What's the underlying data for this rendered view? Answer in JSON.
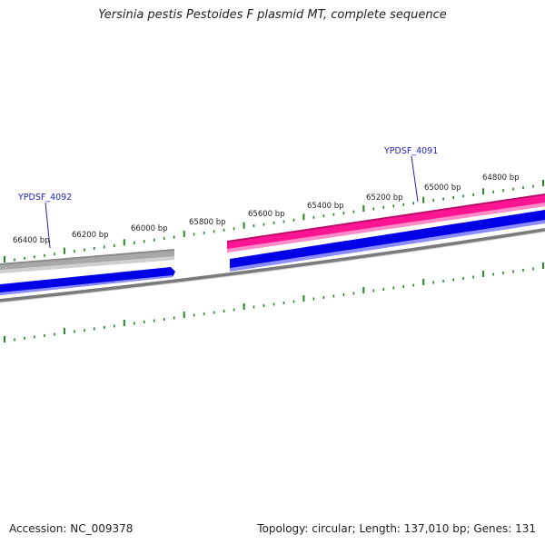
{
  "title": "Yersinia pestis Pestoides F plasmid MT, complete sequence",
  "scale_labels": [
    "66400 bp",
    "66200 bp",
    "66000 bp",
    "65800 bp",
    "65600 bp",
    "65400 bp",
    "65200 bp",
    "65000 bp",
    "64800 bp"
  ],
  "genes": [
    {
      "name": "YPDSF_4092"
    },
    {
      "name": "YPDSF_4091"
    }
  ],
  "footer": {
    "accession": "Accession: NC_009378",
    "summary": "Topology: circular; Length: 137,010 bp; Genes: 131"
  },
  "colors": {
    "tick": "#228822",
    "backbone": "#7a7a7a",
    "gene_forward": "#ff1493",
    "gene_reverse": "#0000e6",
    "gene_grey": "#a8a8a8",
    "gene_label": "#2222bb"
  }
}
